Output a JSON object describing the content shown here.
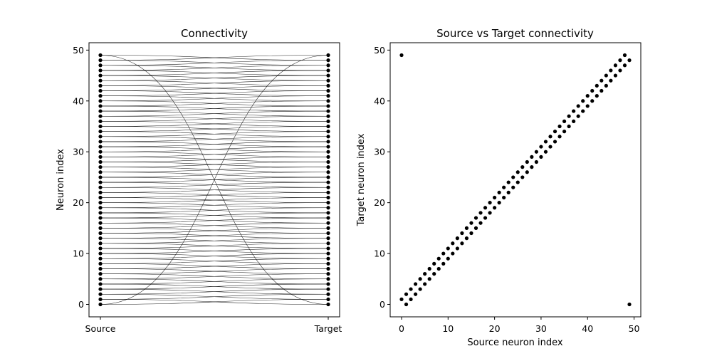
{
  "chart_data": [
    {
      "type": "line",
      "title": "Connectivity",
      "xlabel": "",
      "ylabel": "Neuron index",
      "x_categories": [
        "Source",
        "Target"
      ],
      "ylim": [
        -2.45,
        51.45
      ],
      "yticks": [
        0,
        10,
        20,
        30,
        40,
        50
      ],
      "grid": false,
      "neuron_count": 50,
      "connections": {
        "source": [
          0,
          1,
          2,
          3,
          4,
          5,
          6,
          7,
          8,
          9,
          10,
          11,
          12,
          13,
          14,
          15,
          16,
          17,
          18,
          19,
          20,
          21,
          22,
          23,
          24,
          25,
          26,
          27,
          28,
          29,
          30,
          31,
          32,
          33,
          34,
          35,
          36,
          37,
          38,
          39,
          40,
          41,
          42,
          43,
          44,
          45,
          46,
          47,
          48,
          49,
          0,
          1,
          2,
          3,
          4,
          5,
          6,
          7,
          8,
          9,
          10,
          11,
          12,
          13,
          14,
          15,
          16,
          17,
          18,
          19,
          20,
          21,
          22,
          23,
          24,
          25,
          26,
          27,
          28,
          29,
          30,
          31,
          32,
          33,
          34,
          35,
          36,
          37,
          38,
          39,
          40,
          41,
          42,
          43,
          44,
          45,
          46,
          47,
          48,
          49
        ],
        "target": [
          1,
          2,
          3,
          4,
          5,
          6,
          7,
          8,
          9,
          10,
          11,
          12,
          13,
          14,
          15,
          16,
          17,
          18,
          19,
          20,
          21,
          22,
          23,
          24,
          25,
          26,
          27,
          28,
          29,
          30,
          31,
          32,
          33,
          34,
          35,
          36,
          37,
          38,
          39,
          40,
          41,
          42,
          43,
          44,
          45,
          46,
          47,
          48,
          49,
          0,
          49,
          0,
          1,
          2,
          3,
          4,
          5,
          6,
          7,
          8,
          9,
          10,
          11,
          12,
          13,
          14,
          15,
          16,
          17,
          18,
          19,
          20,
          21,
          22,
          23,
          24,
          25,
          26,
          27,
          28,
          29,
          30,
          31,
          32,
          33,
          34,
          35,
          36,
          37,
          38,
          39,
          40,
          41,
          42,
          43,
          44,
          45,
          46,
          47,
          48
        ]
      },
      "line_color": "#000000",
      "marker_color": "#000000"
    },
    {
      "type": "scatter",
      "title": "Source vs Target connectivity",
      "xlabel": "Source neuron index",
      "ylabel": "Target neuron index",
      "xlim": [
        -2.45,
        51.45
      ],
      "ylim": [
        -2.45,
        51.45
      ],
      "xticks": [
        0,
        10,
        20,
        30,
        40,
        50
      ],
      "yticks": [
        0,
        10,
        20,
        30,
        40,
        50
      ],
      "grid": false,
      "points": {
        "x": [
          0,
          1,
          2,
          3,
          4,
          5,
          6,
          7,
          8,
          9,
          10,
          11,
          12,
          13,
          14,
          15,
          16,
          17,
          18,
          19,
          20,
          21,
          22,
          23,
          24,
          25,
          26,
          27,
          28,
          29,
          30,
          31,
          32,
          33,
          34,
          35,
          36,
          37,
          38,
          39,
          40,
          41,
          42,
          43,
          44,
          45,
          46,
          47,
          48,
          49,
          0,
          1,
          2,
          3,
          4,
          5,
          6,
          7,
          8,
          9,
          10,
          11,
          12,
          13,
          14,
          15,
          16,
          17,
          18,
          19,
          20,
          21,
          22,
          23,
          24,
          25,
          26,
          27,
          28,
          29,
          30,
          31,
          32,
          33,
          34,
          35,
          36,
          37,
          38,
          39,
          40,
          41,
          42,
          43,
          44,
          45,
          46,
          47,
          48,
          49
        ],
        "y": [
          1,
          2,
          3,
          4,
          5,
          6,
          7,
          8,
          9,
          10,
          11,
          12,
          13,
          14,
          15,
          16,
          17,
          18,
          19,
          20,
          21,
          22,
          23,
          24,
          25,
          26,
          27,
          28,
          29,
          30,
          31,
          32,
          33,
          34,
          35,
          36,
          37,
          38,
          39,
          40,
          41,
          42,
          43,
          44,
          45,
          46,
          47,
          48,
          49,
          0,
          49,
          0,
          1,
          2,
          3,
          4,
          5,
          6,
          7,
          8,
          9,
          10,
          11,
          12,
          13,
          14,
          15,
          16,
          17,
          18,
          19,
          20,
          21,
          22,
          23,
          24,
          25,
          26,
          27,
          28,
          29,
          30,
          31,
          32,
          33,
          34,
          35,
          36,
          37,
          38,
          39,
          40,
          41,
          42,
          43,
          44,
          45,
          46,
          47,
          48
        ]
      },
      "marker_color": "#000000"
    }
  ]
}
